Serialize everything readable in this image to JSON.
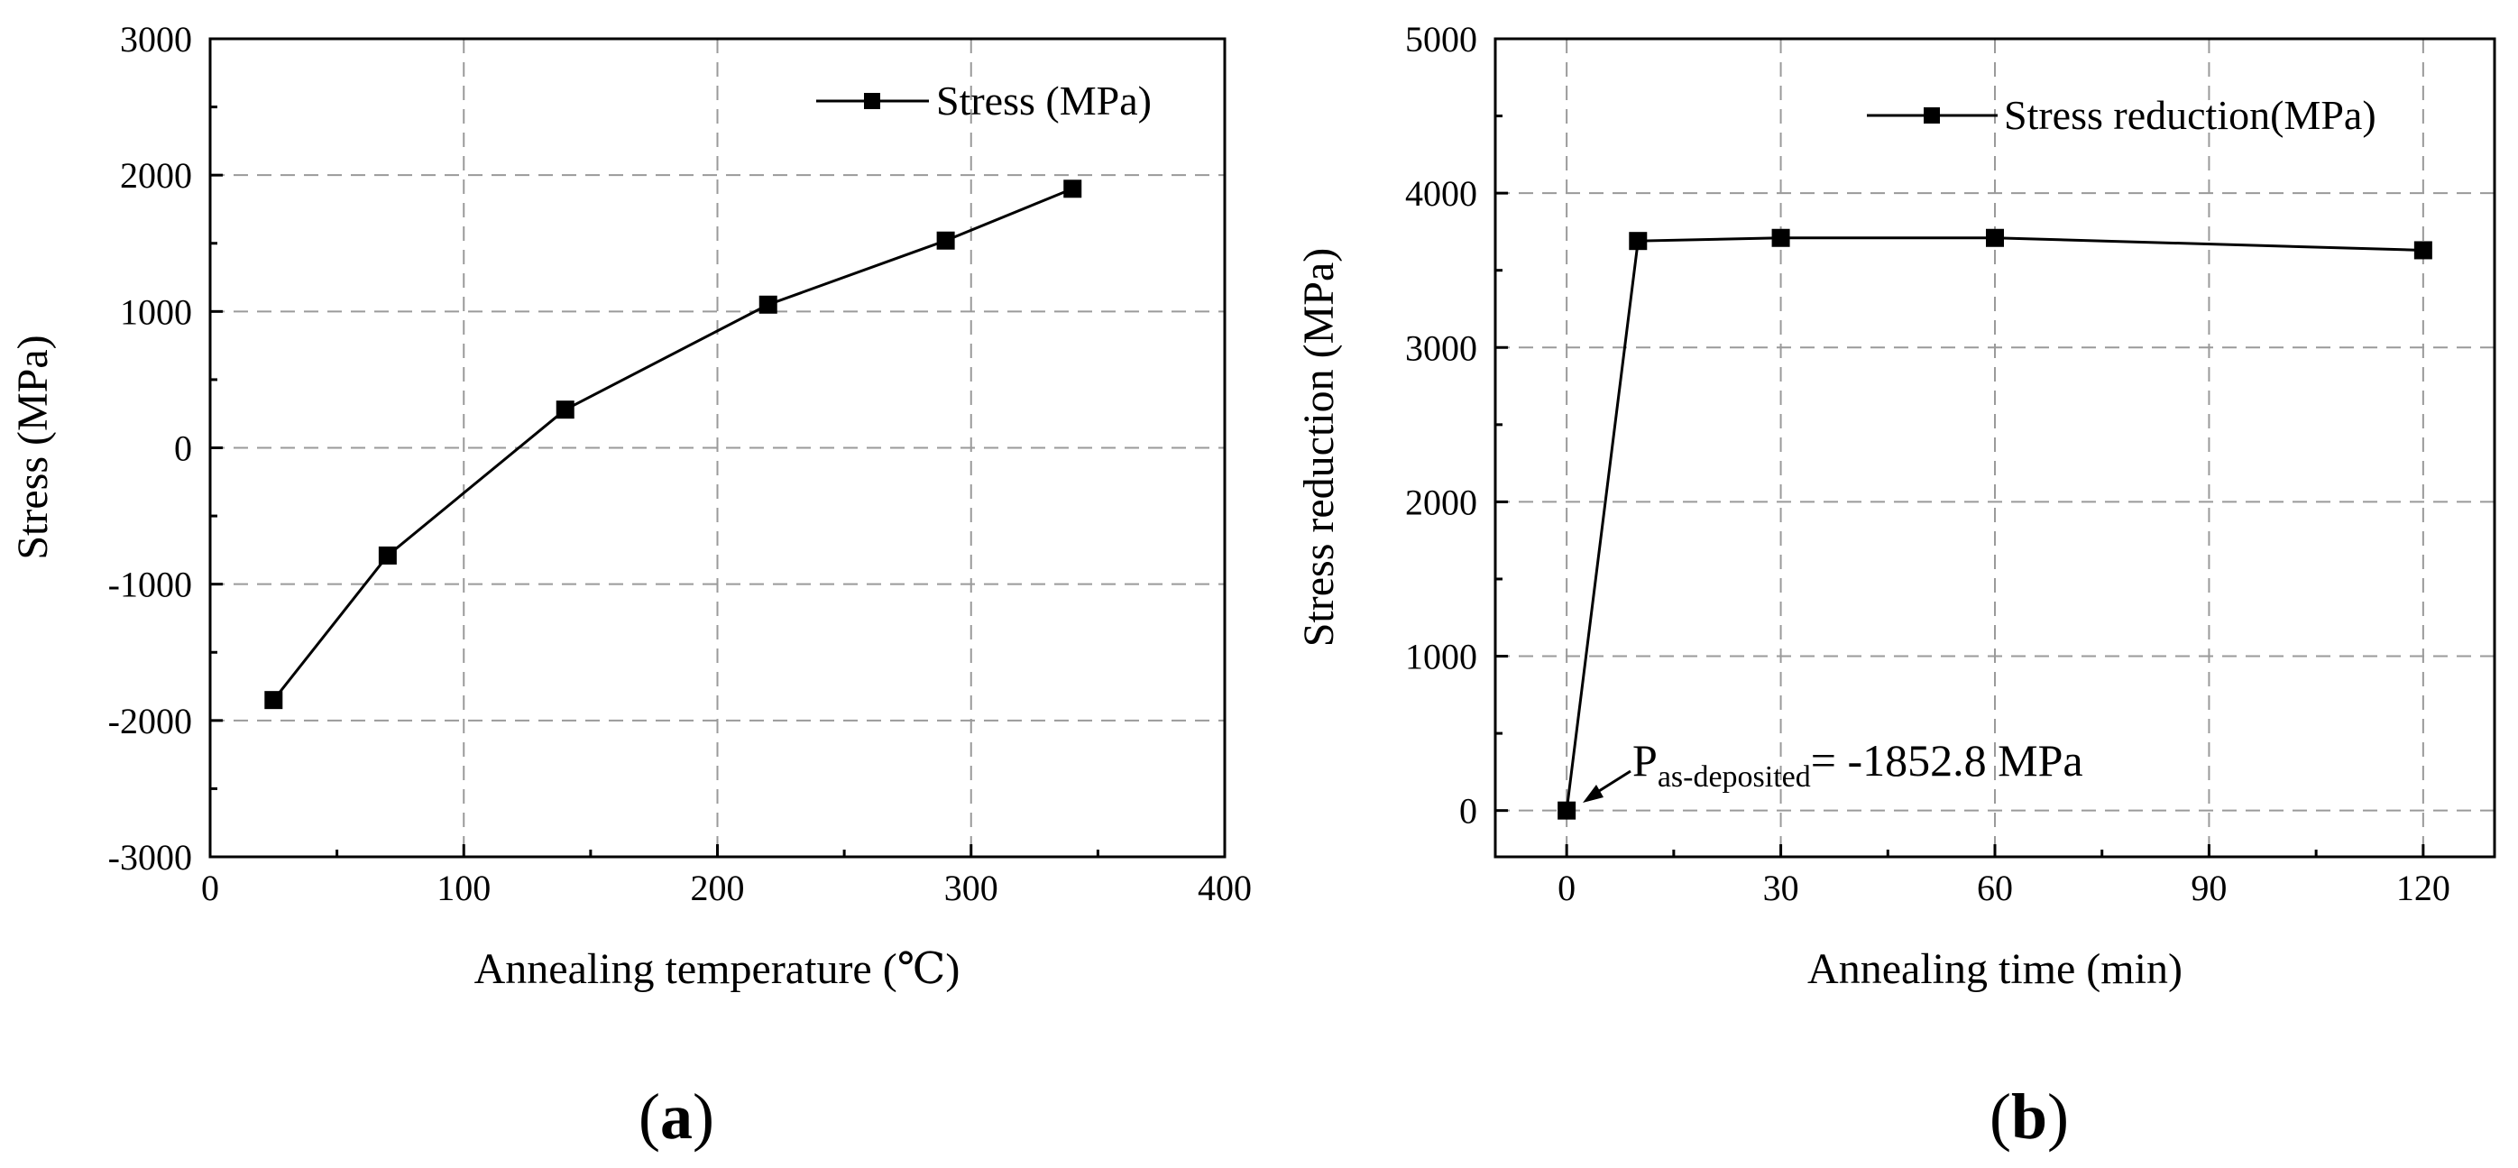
{
  "chart_data": [
    {
      "id": "a",
      "type": "line",
      "panel_label": "(a)",
      "panel_letter": "a",
      "xlabel": "Annealing temperature (℃)",
      "ylabel": "Stress (MPa)",
      "xlim": [
        0,
        400
      ],
      "ylim": [
        -3000,
        3000
      ],
      "xticks": [
        0,
        100,
        200,
        300,
        400
      ],
      "yticks": [
        -3000,
        -2000,
        -1000,
        0,
        1000,
        2000,
        3000
      ],
      "grid": true,
      "legend_position": "top-right",
      "series": [
        {
          "name": "Stress (MPa)",
          "marker": "square",
          "x": [
            25,
            70,
            140,
            220,
            290,
            340
          ],
          "y": [
            -1850,
            -790,
            280,
            1050,
            1520,
            1900
          ]
        }
      ]
    },
    {
      "id": "b",
      "type": "line",
      "panel_label": "(b)",
      "panel_letter": "b",
      "xlabel": "Annealing time (min)",
      "ylabel": "Stress reduction (MPa)",
      "xlim": [
        -10,
        130
      ],
      "ylim": [
        -300,
        5000
      ],
      "xticks": [
        0,
        30,
        60,
        90,
        120
      ],
      "yticks": [
        0,
        1000,
        2000,
        3000,
        4000,
        5000
      ],
      "grid": true,
      "legend_position": "top-right",
      "series": [
        {
          "name": "Stress reduction(MPa)",
          "marker": "square",
          "x": [
            0,
            10,
            30,
            60,
            120
          ],
          "y": [
            0,
            3690,
            3710,
            3710,
            3630
          ]
        }
      ],
      "annotation": {
        "symbol": "P",
        "subscript": "as-deposited",
        "text": "= -1852.8 MPa",
        "points_to": [
          0,
          0
        ]
      }
    }
  ]
}
